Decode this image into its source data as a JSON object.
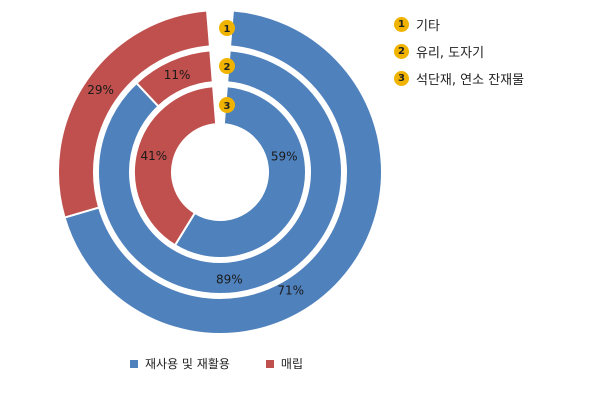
{
  "chart_data": {
    "type": "donut",
    "colors": {
      "recycle": "#4f81bd",
      "landfill": "#c0504d",
      "badge": "#f0b400"
    },
    "rings": [
      {
        "marker": "1",
        "name": "기타",
        "values": {
          "recycle": 71,
          "landfill": 29
        },
        "labels": {
          "recycle": "71%",
          "landfill": "29%"
        }
      },
      {
        "marker": "2",
        "name": "유리, 도자기",
        "values": {
          "recycle": 89,
          "landfill": 11
        },
        "labels": {
          "recycle": "89%",
          "landfill": "11%"
        }
      },
      {
        "marker": "3",
        "name": "석단재, 연소 잔재물",
        "values": {
          "recycle": 59,
          "landfill": 41
        },
        "labels": {
          "recycle": "59%",
          "landfill": "41%"
        }
      }
    ],
    "legend": [
      {
        "key": "recycle",
        "label": "재사용 및 재활용"
      },
      {
        "key": "landfill",
        "label": "매립"
      }
    ]
  }
}
